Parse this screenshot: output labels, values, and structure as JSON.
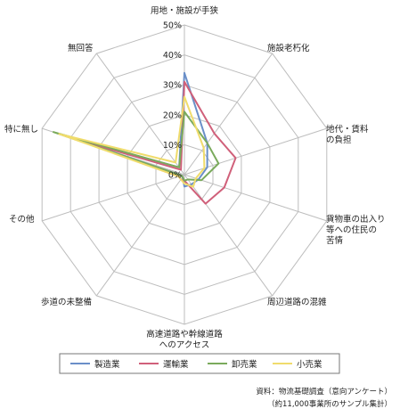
{
  "chart_data": {
    "type": "radar",
    "categories": [
      "用地・施設が手狭",
      "施設老朽化",
      "地代・賃料の負担",
      "貨物車の出入り等への住民の苦情",
      "周辺道路の混雑",
      "高速道路や幹線道路へのアクセス",
      "歩道の未整備",
      "その他",
      "特に無し",
      "無回答"
    ],
    "category_lines": [
      [
        "用地・施設が手狭"
      ],
      [
        "施設老朽化"
      ],
      [
        "地代・賃料",
        "の負担"
      ],
      [
        "貨物車の出入り",
        "等への住民の",
        "苦情"
      ],
      [
        "周辺道路の混雑"
      ],
      [
        "高速道路や幹線道路",
        "へのアクセス"
      ],
      [
        "歩道の未整備"
      ],
      [
        "その他"
      ],
      [
        "特に無し"
      ],
      [
        "無回答"
      ]
    ],
    "ticks": [
      "0%",
      "10%",
      "20%",
      "30%",
      "40%",
      "50%"
    ],
    "rmax": 50,
    "series": [
      {
        "name": "製造業",
        "color": "#6a8fc8",
        "values": [
          34,
          13,
          8,
          5,
          4,
          4,
          1,
          1,
          42,
          3
        ]
      },
      {
        "name": "運輸業",
        "color": "#d0607a",
        "values": [
          31,
          17,
          18,
          14,
          12,
          2,
          2,
          2,
          38,
          2
        ]
      },
      {
        "name": "卸売業",
        "color": "#7aaa5c",
        "values": [
          21,
          13,
          12,
          6,
          2,
          2,
          1,
          1,
          46,
          3
        ]
      },
      {
        "name": "小売業",
        "color": "#f0dc6c",
        "values": [
          26,
          11,
          7,
          4,
          5,
          3,
          2,
          2,
          44,
          5
        ]
      }
    ],
    "grid": true,
    "legend": "bottom"
  },
  "source": {
    "line1": "資料：物流基礎調査（意向アンケート）",
    "line2": "（約11,000事業所のサンプル集計）"
  }
}
